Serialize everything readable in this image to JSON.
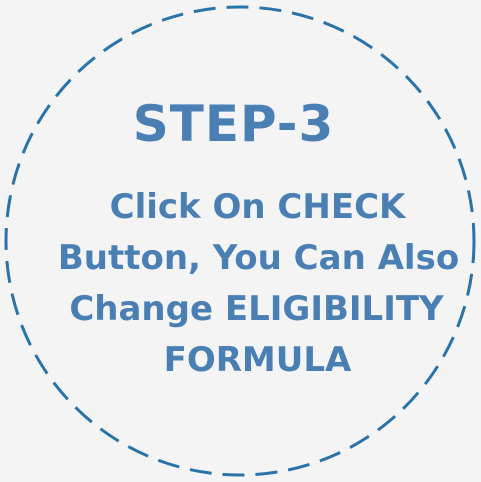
{
  "badge": {
    "accent_color": "#2a73a8",
    "text_color": "#4a7fb4",
    "background_color": "#f4f4f4",
    "border_style": "dashed",
    "title": "STEP-3",
    "lines": [
      "Click On CHECK",
      "Button, You Can Also",
      "Change ELIGIBILITY",
      "FORMULA"
    ]
  }
}
